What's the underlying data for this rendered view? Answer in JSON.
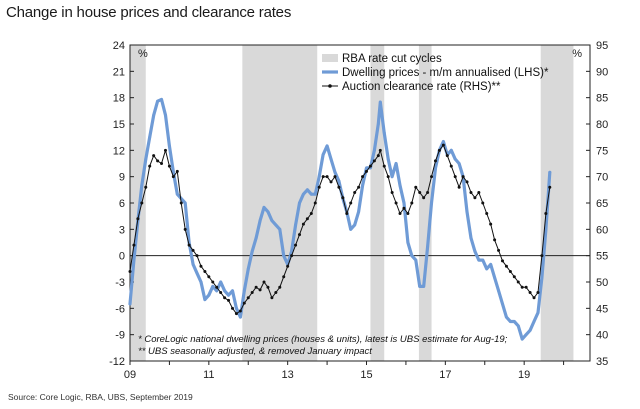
{
  "chart_data": {
    "type": "line",
    "title": "Change in house prices and clearance rates",
    "source": "Source: Core Logic, RBA, UBS, September 2019",
    "left_axis": {
      "unit": "%",
      "range": [
        -12,
        24
      ],
      "ticks": [
        "24",
        "21",
        "18",
        "15",
        "12",
        "9",
        "6",
        "3",
        "0",
        "-3",
        "-6",
        "-9",
        "-12"
      ]
    },
    "right_axis": {
      "unit": "%",
      "range": [
        35,
        95
      ],
      "ticks": [
        "95",
        "90",
        "85",
        "80",
        "75",
        "70",
        "65",
        "60",
        "55",
        "50",
        "45",
        "40",
        "35"
      ]
    },
    "x_axis": {
      "range": [
        2009,
        2020.67
      ],
      "ticks": [
        {
          "label": "09",
          "at": 2009
        },
        {
          "label": "11",
          "at": 2011
        },
        {
          "label": "13",
          "at": 2013
        },
        {
          "label": "15",
          "at": 2015
        },
        {
          "label": "17",
          "at": 2017
        },
        {
          "label": "19",
          "at": 2019
        }
      ]
    },
    "rate_cut_cycles": [
      [
        2009.0,
        2009.4
      ],
      [
        2011.85,
        2013.75
      ],
      [
        2015.1,
        2015.45
      ],
      [
        2016.33,
        2016.65
      ],
      [
        2019.42,
        2020.25
      ]
    ],
    "legend": {
      "placement": "top-right",
      "items": [
        {
          "label": "RBA rate cut cycles",
          "kind": "band"
        },
        {
          "label": "Dwelling prices - m/m annualised (LHS)*",
          "kind": "line-thick"
        },
        {
          "label": "Auction clearance rate (RHS)**",
          "kind": "line-marker"
        }
      ]
    },
    "footnotes": [
      "* CoreLogic national dwelling prices (houses & units), latest is UBS estimate for Aug-19;",
      "** UBS seasonally adjusted, & removed January impact"
    ],
    "colors": {
      "dwelling": "#6f9bd6",
      "clearance": "#111111",
      "band": "#d9d9d9"
    },
    "series": [
      {
        "name": "Dwelling prices - m/m annualised (LHS)*",
        "axis": "left",
        "points": [
          [
            2009.0,
            -5.5
          ],
          [
            2009.1,
            -0.5
          ],
          [
            2009.2,
            4.0
          ],
          [
            2009.3,
            8.0
          ],
          [
            2009.4,
            11.0
          ],
          [
            2009.5,
            13.5
          ],
          [
            2009.6,
            16.0
          ],
          [
            2009.7,
            17.6
          ],
          [
            2009.8,
            17.8
          ],
          [
            2009.9,
            16.0
          ],
          [
            2010.0,
            12.5
          ],
          [
            2010.1,
            9.5
          ],
          [
            2010.2,
            7.0
          ],
          [
            2010.3,
            6.5
          ],
          [
            2010.4,
            6.0
          ],
          [
            2010.5,
            1.5
          ],
          [
            2010.6,
            -1.0
          ],
          [
            2010.7,
            -2.0
          ],
          [
            2010.8,
            -3.0
          ],
          [
            2010.9,
            -5.0
          ],
          [
            2011.0,
            -4.5
          ],
          [
            2011.1,
            -3.5
          ],
          [
            2011.2,
            -4.0
          ],
          [
            2011.3,
            -3.0
          ],
          [
            2011.4,
            -4.0
          ],
          [
            2011.5,
            -4.5
          ],
          [
            2011.6,
            -4.0
          ],
          [
            2011.7,
            -6.0
          ],
          [
            2011.8,
            -7.0
          ],
          [
            2011.9,
            -4.0
          ],
          [
            2012.0,
            -1.5
          ],
          [
            2012.1,
            0.5
          ],
          [
            2012.2,
            2.0
          ],
          [
            2012.3,
            4.0
          ],
          [
            2012.4,
            5.5
          ],
          [
            2012.5,
            5.0
          ],
          [
            2012.6,
            4.0
          ],
          [
            2012.7,
            3.5
          ],
          [
            2012.8,
            3.0
          ],
          [
            2012.9,
            0.0
          ],
          [
            2013.0,
            -1.0
          ],
          [
            2013.1,
            0.5
          ],
          [
            2013.2,
            3.5
          ],
          [
            2013.3,
            6.0
          ],
          [
            2013.4,
            7.0
          ],
          [
            2013.5,
            7.5
          ],
          [
            2013.6,
            7.0
          ],
          [
            2013.7,
            7.0
          ],
          [
            2013.8,
            9.0
          ],
          [
            2013.9,
            11.5
          ],
          [
            2014.0,
            12.5
          ],
          [
            2014.1,
            11.0
          ],
          [
            2014.2,
            9.5
          ],
          [
            2014.3,
            8.5
          ],
          [
            2014.4,
            6.5
          ],
          [
            2014.5,
            5.0
          ],
          [
            2014.6,
            3.0
          ],
          [
            2014.7,
            3.5
          ],
          [
            2014.8,
            5.0
          ],
          [
            2014.9,
            8.0
          ],
          [
            2015.0,
            10.0
          ],
          [
            2015.1,
            10.0
          ],
          [
            2015.2,
            12.0
          ],
          [
            2015.3,
            15.0
          ],
          [
            2015.35,
            17.5
          ],
          [
            2015.45,
            14.0
          ],
          [
            2015.55,
            11.0
          ],
          [
            2015.65,
            9.0
          ],
          [
            2015.75,
            10.5
          ],
          [
            2015.85,
            8.0
          ],
          [
            2015.95,
            6.0
          ],
          [
            2016.05,
            1.5
          ],
          [
            2016.15,
            0.0
          ],
          [
            2016.25,
            -0.5
          ],
          [
            2016.35,
            -3.5
          ],
          [
            2016.45,
            -3.5
          ],
          [
            2016.55,
            1.0
          ],
          [
            2016.65,
            6.0
          ],
          [
            2016.75,
            10.0
          ],
          [
            2016.85,
            12.0
          ],
          [
            2016.95,
            13.0
          ],
          [
            2017.05,
            11.5
          ],
          [
            2017.15,
            12.0
          ],
          [
            2017.25,
            11.0
          ],
          [
            2017.35,
            10.5
          ],
          [
            2017.45,
            9.0
          ],
          [
            2017.55,
            5.0
          ],
          [
            2017.65,
            2.0
          ],
          [
            2017.75,
            0.5
          ],
          [
            2017.85,
            -0.5
          ],
          [
            2017.95,
            -0.5
          ],
          [
            2018.05,
            -1.5
          ],
          [
            2018.15,
            -1.0
          ],
          [
            2018.25,
            -2.5
          ],
          [
            2018.35,
            -4.0
          ],
          [
            2018.45,
            -5.5
          ],
          [
            2018.55,
            -7.0
          ],
          [
            2018.65,
            -7.5
          ],
          [
            2018.75,
            -7.5
          ],
          [
            2018.85,
            -8.0
          ],
          [
            2018.95,
            -9.5
          ],
          [
            2019.05,
            -9.0
          ],
          [
            2019.15,
            -8.5
          ],
          [
            2019.25,
            -7.5
          ],
          [
            2019.35,
            -6.5
          ],
          [
            2019.45,
            -2.5
          ],
          [
            2019.55,
            3.0
          ],
          [
            2019.65,
            9.5
          ]
        ]
      },
      {
        "name": "Auction clearance rate (RHS)**",
        "axis": "right",
        "points": [
          [
            2009.0,
            52.0
          ],
          [
            2009.1,
            57.0
          ],
          [
            2009.2,
            62.0
          ],
          [
            2009.3,
            65.0
          ],
          [
            2009.4,
            68.0
          ],
          [
            2009.5,
            72.0
          ],
          [
            2009.6,
            74.0
          ],
          [
            2009.7,
            73.0
          ],
          [
            2009.8,
            72.5
          ],
          [
            2009.9,
            75.0
          ],
          [
            2010.0,
            72.0
          ],
          [
            2010.1,
            70.0
          ],
          [
            2010.2,
            71.0
          ],
          [
            2010.3,
            65.0
          ],
          [
            2010.4,
            60.0
          ],
          [
            2010.5,
            57.0
          ],
          [
            2010.6,
            56.0
          ],
          [
            2010.7,
            55.0
          ],
          [
            2010.8,
            53.0
          ],
          [
            2010.9,
            52.0
          ],
          [
            2011.0,
            51.0
          ],
          [
            2011.1,
            50.0
          ],
          [
            2011.2,
            49.0
          ],
          [
            2011.3,
            48.0
          ],
          [
            2011.4,
            47.0
          ],
          [
            2011.5,
            46.5
          ],
          [
            2011.6,
            45.0
          ],
          [
            2011.7,
            44.0
          ],
          [
            2011.8,
            44.5
          ],
          [
            2011.9,
            46.0
          ],
          [
            2012.0,
            47.0
          ],
          [
            2012.1,
            48.0
          ],
          [
            2012.2,
            49.0
          ],
          [
            2012.3,
            48.5
          ],
          [
            2012.4,
            50.0
          ],
          [
            2012.5,
            49.0
          ],
          [
            2012.6,
            47.0
          ],
          [
            2012.7,
            48.0
          ],
          [
            2012.8,
            49.0
          ],
          [
            2012.9,
            51.0
          ],
          [
            2013.0,
            53.0
          ],
          [
            2013.1,
            55.0
          ],
          [
            2013.2,
            57.0
          ],
          [
            2013.3,
            59.0
          ],
          [
            2013.4,
            61.0
          ],
          [
            2013.5,
            62.0
          ],
          [
            2013.6,
            63.0
          ],
          [
            2013.7,
            65.0
          ],
          [
            2013.8,
            68.0
          ],
          [
            2013.9,
            70.0
          ],
          [
            2014.0,
            70.0
          ],
          [
            2014.1,
            69.0
          ],
          [
            2014.2,
            70.0
          ],
          [
            2014.3,
            68.0
          ],
          [
            2014.4,
            66.0
          ],
          [
            2014.5,
            63.0
          ],
          [
            2014.6,
            65.0
          ],
          [
            2014.7,
            67.0
          ],
          [
            2014.8,
            68.0
          ],
          [
            2014.9,
            70.0
          ],
          [
            2015.0,
            71.0
          ],
          [
            2015.1,
            72.0
          ],
          [
            2015.2,
            73.0
          ],
          [
            2015.3,
            74.0
          ],
          [
            2015.35,
            75.0
          ],
          [
            2015.45,
            72.0
          ],
          [
            2015.55,
            70.0
          ],
          [
            2015.65,
            67.0
          ],
          [
            2015.75,
            65.0
          ],
          [
            2015.85,
            63.0
          ],
          [
            2015.95,
            64.0
          ],
          [
            2016.05,
            63.0
          ],
          [
            2016.15,
            65.0
          ],
          [
            2016.25,
            68.0
          ],
          [
            2016.35,
            67.0
          ],
          [
            2016.45,
            66.0
          ],
          [
            2016.55,
            67.0
          ],
          [
            2016.65,
            70.0
          ],
          [
            2016.75,
            73.0
          ],
          [
            2016.85,
            75.0
          ],
          [
            2016.95,
            76.0
          ],
          [
            2017.05,
            74.0
          ],
          [
            2017.15,
            72.0
          ],
          [
            2017.25,
            70.0
          ],
          [
            2017.35,
            68.0
          ],
          [
            2017.45,
            70.0
          ],
          [
            2017.55,
            69.0
          ],
          [
            2017.65,
            67.0
          ],
          [
            2017.75,
            66.0
          ],
          [
            2017.85,
            67.0
          ],
          [
            2017.95,
            65.0
          ],
          [
            2018.05,
            63.0
          ],
          [
            2018.15,
            61.0
          ],
          [
            2018.25,
            58.0
          ],
          [
            2018.35,
            56.0
          ],
          [
            2018.45,
            54.0
          ],
          [
            2018.55,
            53.0
          ],
          [
            2018.65,
            52.0
          ],
          [
            2018.75,
            51.0
          ],
          [
            2018.85,
            50.0
          ],
          [
            2018.95,
            49.0
          ],
          [
            2019.05,
            49.0
          ],
          [
            2019.15,
            48.0
          ],
          [
            2019.25,
            47.0
          ],
          [
            2019.35,
            48.0
          ],
          [
            2019.45,
            55.0
          ],
          [
            2019.55,
            63.0
          ],
          [
            2019.65,
            68.0
          ]
        ]
      }
    ]
  }
}
